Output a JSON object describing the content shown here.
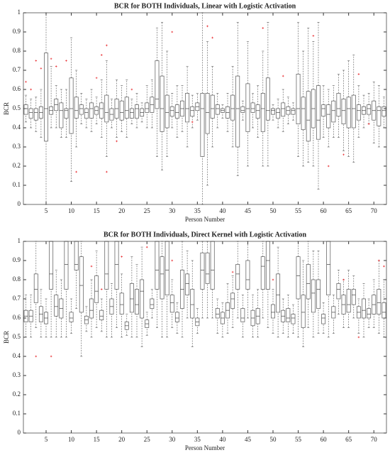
{
  "chart_data": [
    {
      "type": "box",
      "title": "BCR for BOTH Individuals, Linear with Logistic Activation",
      "x_label": "Person Number",
      "y_label": "BCR",
      "xlim": [
        0.5,
        72.5
      ],
      "xticks": [
        5,
        10,
        15,
        20,
        25,
        30,
        35,
        40,
        45,
        50,
        55,
        60,
        65,
        70
      ],
      "ylim": [
        0,
        1
      ],
      "yticks": [
        0,
        0.1,
        0.2,
        0.3,
        0.4,
        0.5,
        0.6,
        0.7,
        0.8,
        0.9,
        1
      ],
      "box_color": "#555555",
      "outlier_color": "#e8262a",
      "x": [
        1,
        2,
        3,
        4,
        5,
        6,
        7,
        8,
        9,
        10,
        11,
        12,
        13,
        14,
        15,
        16,
        17,
        18,
        19,
        20,
        21,
        22,
        23,
        24,
        25,
        26,
        27,
        28,
        29,
        30,
        31,
        32,
        33,
        34,
        35,
        36,
        37,
        38,
        39,
        40,
        41,
        42,
        43,
        44,
        45,
        46,
        47,
        48,
        49,
        50,
        51,
        52,
        53,
        54,
        55,
        56,
        57,
        58,
        59,
        60,
        61,
        62,
        63,
        64,
        65,
        66,
        67,
        68,
        69,
        70,
        71,
        72
      ],
      "boxes": {
        "whisker_low": [
          0.43,
          0.4,
          0.38,
          0.35,
          0,
          0.4,
          0.4,
          0.35,
          0.35,
          0.12,
          0.3,
          0.42,
          0.4,
          0.38,
          0.42,
          0.35,
          0.25,
          0.4,
          0.35,
          0.38,
          0.35,
          0.42,
          0.4,
          0.43,
          0.4,
          0.4,
          0.25,
          0.18,
          0.25,
          0.4,
          0.35,
          0.38,
          0.3,
          0.4,
          0.44,
          0,
          0.1,
          0.3,
          0.4,
          0.45,
          0.38,
          0.3,
          0.15,
          0.44,
          0.2,
          0.4,
          0.35,
          0.2,
          0.2,
          0.44,
          0.4,
          0.38,
          0.42,
          0.44,
          0.25,
          0.2,
          0.22,
          0.2,
          0.08,
          0.35,
          0.3,
          0.35,
          0.35,
          0.28,
          0.25,
          0.22,
          0.35,
          0.4,
          0.42,
          0.32,
          0.3,
          0.4
        ],
        "q1": [
          0.47,
          0.45,
          0.44,
          0.45,
          0.33,
          0.47,
          0.49,
          0.4,
          0.45,
          0.37,
          0.45,
          0.47,
          0.45,
          0.45,
          0.47,
          0.45,
          0.43,
          0.44,
          0.45,
          0.44,
          0.45,
          0.45,
          0.45,
          0.46,
          0.48,
          0.48,
          0.5,
          0.38,
          0.4,
          0.46,
          0.45,
          0.46,
          0.43,
          0.46,
          0.49,
          0.25,
          0.37,
          0.45,
          0.47,
          0.48,
          0.45,
          0.44,
          0.3,
          0.48,
          0.38,
          0.48,
          0.45,
          0.38,
          0.44,
          0.47,
          0.45,
          0.46,
          0.47,
          0.47,
          0.42,
          0.39,
          0.33,
          0.4,
          0.34,
          0.46,
          0.4,
          0.43,
          0.46,
          0.42,
          0.4,
          0.4,
          0.44,
          0.47,
          0.47,
          0.44,
          0.41,
          0.46
        ],
        "median": [
          0.5,
          0.48,
          0.48,
          0.48,
          0.5,
          0.49,
          0.52,
          0.49,
          0.49,
          0.5,
          0.49,
          0.5,
          0.48,
          0.5,
          0.49,
          0.5,
          0.48,
          0.47,
          0.5,
          0.48,
          0.49,
          0.48,
          0.5,
          0.48,
          0.5,
          0.52,
          0.55,
          0.5,
          0.48,
          0.49,
          0.48,
          0.5,
          0.5,
          0.49,
          0.51,
          0.5,
          0.48,
          0.5,
          0.5,
          0.49,
          0.48,
          0.5,
          0.5,
          0.49,
          0.5,
          0.5,
          0.49,
          0.5,
          0.49,
          0.49,
          0.48,
          0.5,
          0.49,
          0.49,
          0.5,
          0.5,
          0.44,
          0.5,
          0.44,
          0.5,
          0.47,
          0.49,
          0.5,
          0.49,
          0.5,
          0.5,
          0.49,
          0.49,
          0.5,
          0.49,
          0.49,
          0.49
        ],
        "q3": [
          0.52,
          0.5,
          0.5,
          0.51,
          0.79,
          0.51,
          0.55,
          0.53,
          0.5,
          0.66,
          0.56,
          0.52,
          0.5,
          0.53,
          0.51,
          0.53,
          0.57,
          0.5,
          0.55,
          0.54,
          0.56,
          0.5,
          0.52,
          0.5,
          0.53,
          0.56,
          0.75,
          0.67,
          0.57,
          0.51,
          0.52,
          0.54,
          0.58,
          0.51,
          0.53,
          0.58,
          0.58,
          0.57,
          0.52,
          0.5,
          0.51,
          0.57,
          0.67,
          0.51,
          0.63,
          0.53,
          0.52,
          0.58,
          0.66,
          0.5,
          0.5,
          0.53,
          0.51,
          0.5,
          0.68,
          0.56,
          0.59,
          0.6,
          0.62,
          0.52,
          0.52,
          0.54,
          0.58,
          0.55,
          0.56,
          0.57,
          0.52,
          0.51,
          0.52,
          0.54,
          0.51,
          0.51
        ],
        "whisker_high": [
          0.57,
          0.55,
          0.56,
          0.6,
          1,
          0.72,
          0.62,
          0.6,
          0.6,
          0.87,
          0.7,
          0.58,
          0.55,
          0.6,
          0.56,
          0.65,
          0.75,
          0.55,
          0.65,
          0.62,
          0.65,
          0.55,
          0.58,
          0.53,
          0.62,
          0.65,
          0.92,
          0.95,
          0.8,
          0.58,
          0.62,
          0.62,
          0.72,
          0.57,
          0.58,
          1,
          0.85,
          0.72,
          0.58,
          0.52,
          0.58,
          0.72,
          0.95,
          0.54,
          0.85,
          0.58,
          0.62,
          0.8,
          0.95,
          0.52,
          0.55,
          0.6,
          0.56,
          0.53,
          0.95,
          0.8,
          0.92,
          0.85,
          0.95,
          0.62,
          0.6,
          0.62,
          0.68,
          0.7,
          0.75,
          0.78,
          0.62,
          0.57,
          0.58,
          0.64,
          0.62,
          0.56
        ]
      },
      "outliers": {
        "x": [
          1,
          2,
          3,
          4,
          6,
          7,
          9,
          11,
          15,
          16,
          17,
          17,
          19,
          22,
          30,
          34,
          37,
          38,
          48,
          52,
          58,
          61,
          64,
          67,
          69
        ],
        "y": [
          0.64,
          0.6,
          0.75,
          0.71,
          0.76,
          0.72,
          0.75,
          0.17,
          0.66,
          0.78,
          0.83,
          0.17,
          0.33,
          0.6,
          0.9,
          0.43,
          0.93,
          0.87,
          0.92,
          0.67,
          0.88,
          0.2,
          0.26,
          0.68,
          0.42
        ]
      }
    },
    {
      "type": "box",
      "title": "BCR for BOTH Individuals, Direct Kernel with Logistic Activation",
      "x_label": "Person Number",
      "y_label": "BCR",
      "xlim": [
        0.5,
        72.5
      ],
      "xticks": [
        5,
        10,
        15,
        20,
        25,
        30,
        35,
        40,
        45,
        50,
        55,
        60,
        65,
        70
      ],
      "ylim": [
        0,
        1
      ],
      "yticks": [
        0,
        0.1,
        0.2,
        0.3,
        0.4,
        0.5,
        0.6,
        0.7,
        0.8,
        0.9,
        1
      ],
      "box_color": "#555555",
      "outlier_color": "#e8262a",
      "x": [
        1,
        2,
        3,
        4,
        5,
        6,
        7,
        8,
        9,
        10,
        11,
        12,
        13,
        14,
        15,
        16,
        17,
        18,
        19,
        20,
        21,
        22,
        23,
        24,
        25,
        26,
        27,
        28,
        29,
        30,
        31,
        32,
        33,
        34,
        35,
        36,
        37,
        38,
        39,
        40,
        41,
        42,
        43,
        44,
        45,
        46,
        47,
        48,
        49,
        50,
        51,
        52,
        53,
        54,
        55,
        56,
        57,
        58,
        59,
        60,
        61,
        62,
        63,
        64,
        65,
        66,
        67,
        68,
        69,
        70,
        71,
        72
      ],
      "boxes": {
        "whisker_low": [
          0.5,
          0.5,
          0.55,
          0.5,
          0.5,
          0.5,
          0.5,
          0.5,
          0.5,
          0.52,
          0.65,
          0.4,
          0.53,
          0.5,
          0.55,
          0.53,
          0.5,
          0.5,
          0.55,
          0.5,
          0.51,
          0.5,
          0.5,
          0.45,
          0.51,
          0.6,
          0.55,
          0.5,
          0.5,
          0.55,
          0.52,
          0.5,
          0.6,
          0.45,
          0.52,
          0.6,
          0.6,
          0.6,
          0.52,
          0.5,
          0.52,
          0.55,
          0.6,
          0.5,
          0.6,
          0.5,
          0.5,
          0.6,
          0.55,
          0.52,
          0.5,
          0.52,
          0.5,
          0.52,
          0.5,
          0.45,
          0.55,
          0.5,
          0.52,
          0.52,
          0.5,
          0.52,
          0.62,
          0.55,
          0.55,
          0.6,
          0.52,
          0.5,
          0.55,
          0.55,
          0.52,
          0.5
        ],
        "q1": [
          0.58,
          0.58,
          0.68,
          0.58,
          0.57,
          0.75,
          0.61,
          0.6,
          0.75,
          0.58,
          0.85,
          0.63,
          0.57,
          0.6,
          0.68,
          0.59,
          0.75,
          0.62,
          0.75,
          0.62,
          0.54,
          0.63,
          0.62,
          0.6,
          0.55,
          0.65,
          0.75,
          0.7,
          0.72,
          0.63,
          0.58,
          0.65,
          0.72,
          0.6,
          0.56,
          0.75,
          0.78,
          0.75,
          0.6,
          0.57,
          0.6,
          0.65,
          0.75,
          0.58,
          0.75,
          0.56,
          0.57,
          0.75,
          0.75,
          0.6,
          0.63,
          0.58,
          0.58,
          0.57,
          0.7,
          0.55,
          0.7,
          0.63,
          0.65,
          0.57,
          0.72,
          0.6,
          0.7,
          0.62,
          0.63,
          0.67,
          0.6,
          0.6,
          0.6,
          0.62,
          0.62,
          0.6
        ],
        "median": [
          0.61,
          0.61,
          0.75,
          0.62,
          0.6,
          0.83,
          0.66,
          0.65,
          0.88,
          0.6,
          0.88,
          0.77,
          0.59,
          0.64,
          0.74,
          0.61,
          0.83,
          0.66,
          0.88,
          0.67,
          0.56,
          0.7,
          0.67,
          0.74,
          0.57,
          0.67,
          0.85,
          0.83,
          0.85,
          0.68,
          0.6,
          0.75,
          0.78,
          0.67,
          0.58,
          0.85,
          0.83,
          0.85,
          0.62,
          0.6,
          0.64,
          0.7,
          0.83,
          0.6,
          0.8,
          0.6,
          0.61,
          0.87,
          0.9,
          0.63,
          0.72,
          0.61,
          0.6,
          0.6,
          0.82,
          0.63,
          0.78,
          0.73,
          0.75,
          0.6,
          0.88,
          0.63,
          0.75,
          0.67,
          0.67,
          0.72,
          0.63,
          0.64,
          0.62,
          0.67,
          0.68,
          0.63
        ],
        "q3": [
          0.64,
          0.64,
          0.83,
          0.66,
          0.63,
          1,
          0.72,
          0.7,
          1,
          0.63,
          1,
          0.92,
          0.61,
          0.7,
          0.82,
          0.64,
          1,
          0.7,
          1,
          0.73,
          0.58,
          0.78,
          0.75,
          0.8,
          0.59,
          0.7,
          1,
          0.92,
          1,
          0.72,
          0.63,
          0.85,
          0.83,
          0.75,
          0.6,
          0.94,
          0.94,
          1,
          0.65,
          0.63,
          0.68,
          0.73,
          0.88,
          0.65,
          0.9,
          0.64,
          0.65,
          0.92,
          1,
          0.67,
          0.83,
          0.64,
          0.65,
          0.62,
          0.92,
          0.72,
          0.88,
          0.8,
          0.8,
          0.62,
          1,
          0.66,
          0.78,
          0.72,
          0.75,
          0.75,
          0.66,
          0.7,
          0.65,
          0.72,
          0.75,
          0.68
        ],
        "whisker_high": [
          0.72,
          0.72,
          1,
          0.75,
          0.7,
          1,
          0.85,
          0.8,
          1,
          0.7,
          1,
          1,
          0.66,
          0.8,
          0.95,
          0.7,
          1,
          0.78,
          1,
          0.83,
          0.62,
          0.92,
          0.88,
          0.97,
          0.63,
          0.75,
          1,
          1,
          1,
          0.8,
          0.68,
          1,
          0.95,
          0.9,
          0.65,
          1,
          1,
          1,
          0.7,
          0.68,
          0.78,
          0.82,
          1,
          0.72,
          1,
          0.72,
          0.75,
          1,
          1,
          0.75,
          0.97,
          0.7,
          0.72,
          0.67,
          1,
          0.9,
          1,
          0.95,
          0.95,
          0.68,
          1,
          0.72,
          0.85,
          0.8,
          0.85,
          0.82,
          0.7,
          0.78,
          0.7,
          0.8,
          0.9,
          0.8
        ]
      },
      "outliers": {
        "x": [
          3,
          6,
          14,
          16,
          20,
          25,
          30,
          42,
          50,
          64,
          67,
          71,
          72
        ],
        "y": [
          0.4,
          0.4,
          0.87,
          0.75,
          0.92,
          0.97,
          0.9,
          0.84,
          0.8,
          0.8,
          0.5,
          0.9,
          0.87
        ]
      }
    }
  ]
}
